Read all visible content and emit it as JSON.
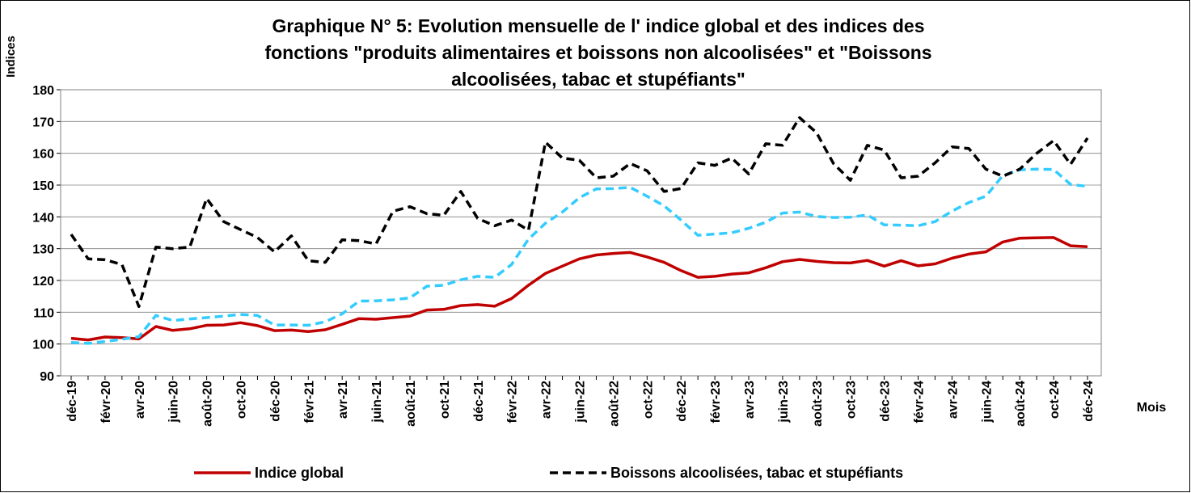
{
  "chart_data": {
    "type": "line",
    "title": [
      "Graphique N° 5: Evolution mensuelle de l' indice global et des indices des",
      "fonctions \"produits alimentaires et boissons non alcoolisées\" et \"Boissons",
      "alcoolisées, tabac et stupéfiants\""
    ],
    "y_label": "Indices",
    "x_label": "Mois",
    "categories": [
      "déc-19",
      null,
      "févr-20",
      null,
      "avr-20",
      null,
      "juin-20",
      null,
      "août-20",
      null,
      "oct-20",
      null,
      "déc-20",
      null,
      "févr-21",
      null,
      "avr-21",
      null,
      "juin-21",
      null,
      "août-21",
      null,
      "oct-21",
      null,
      "déc-21",
      null,
      "févr-22",
      null,
      "avr-22",
      null,
      "juin-22",
      null,
      "août-22",
      null,
      "oct-22",
      null,
      "déc-22",
      null,
      "févr-23",
      null,
      "avr-23",
      null,
      "juin-23",
      null,
      "août-23",
      null,
      "oct-23",
      null,
      "déc-23",
      null,
      "févr-24",
      null,
      "avr-24",
      null,
      "juin-24",
      null,
      "août-24",
      null,
      "oct-24",
      null,
      "déc-24"
    ],
    "series": [
      {
        "name": "Indice global",
        "color": "#c00000",
        "dash": false,
        "values": [
          101.8,
          101.3,
          102.2,
          102,
          101.6,
          105.5,
          104.3,
          104.8,
          105.9,
          106,
          106.7,
          105.8,
          104.2,
          104.4,
          103.9,
          104.5,
          106.2,
          108,
          107.8,
          108.3,
          108.8,
          110.7,
          110.9,
          112.1,
          112.4,
          111.9,
          114.3,
          118.5,
          122.2,
          124.5,
          126.8,
          128,
          128.5,
          128.8,
          127.4,
          125.7,
          123.1,
          121,
          121.3,
          122,
          122.4,
          124,
          125.9,
          126.6,
          126,
          125.6,
          125.5,
          126.3,
          124.5,
          126.2,
          124.6,
          125.2,
          127,
          128.3,
          129,
          132.1,
          133.3,
          133.4,
          133.5,
          130.9,
          130.6
        ]
      },
      {
        "color": "#33ccff",
        "dash": true,
        "values": [
          100.5,
          100.2,
          100.8,
          101.5,
          102.3,
          109,
          107.4,
          107.9,
          108.3,
          108.8,
          109.3,
          109,
          106,
          106,
          105.9,
          107,
          109.5,
          113.5,
          113.6,
          113.9,
          114.5,
          118.2,
          118.5,
          120.2,
          121.3,
          121,
          125,
          133,
          138,
          141.5,
          146,
          148.8,
          148.9,
          149.3,
          146.5,
          143.5,
          139,
          134.2,
          134.6,
          135,
          136.4,
          138.3,
          141.2,
          141.5,
          140.1,
          139.8,
          139.9,
          140.6,
          137.5,
          137.4,
          137.2,
          138.5,
          141.8,
          144.5,
          146.5,
          153,
          154.8,
          155,
          154.9,
          150.2,
          149.6
        ]
      },
      {
        "name": "Boissons alcoolisées, tabac et stupéfiants",
        "color": "#000000",
        "dash": true,
        "values": [
          134.5,
          126.8,
          126.5,
          125,
          111.8,
          130.5,
          130,
          130.5,
          145.8,
          138.5,
          136,
          133.5,
          129,
          134,
          126.2,
          125.7,
          132.8,
          132.5,
          131.5,
          141.8,
          143.2,
          141,
          140.5,
          148,
          139.5,
          137.2,
          139,
          135.8,
          163.5,
          158.5,
          157.8,
          152.3,
          152.8,
          156.8,
          154.5,
          148,
          148.9,
          157,
          156.2,
          158.5,
          153.5,
          163,
          162.5,
          171.2,
          166.5,
          156.8,
          151.5,
          162.5,
          161,
          152.3,
          152.8,
          157,
          162,
          161.5,
          155,
          152.8,
          155,
          160,
          164,
          156.5,
          164.8
        ]
      }
    ],
    "ylim": [
      90,
      180
    ],
    "yticks": [
      90,
      100,
      110,
      120,
      130,
      140,
      150,
      160,
      170,
      180
    ],
    "grid": true,
    "legend": "bottom"
  }
}
